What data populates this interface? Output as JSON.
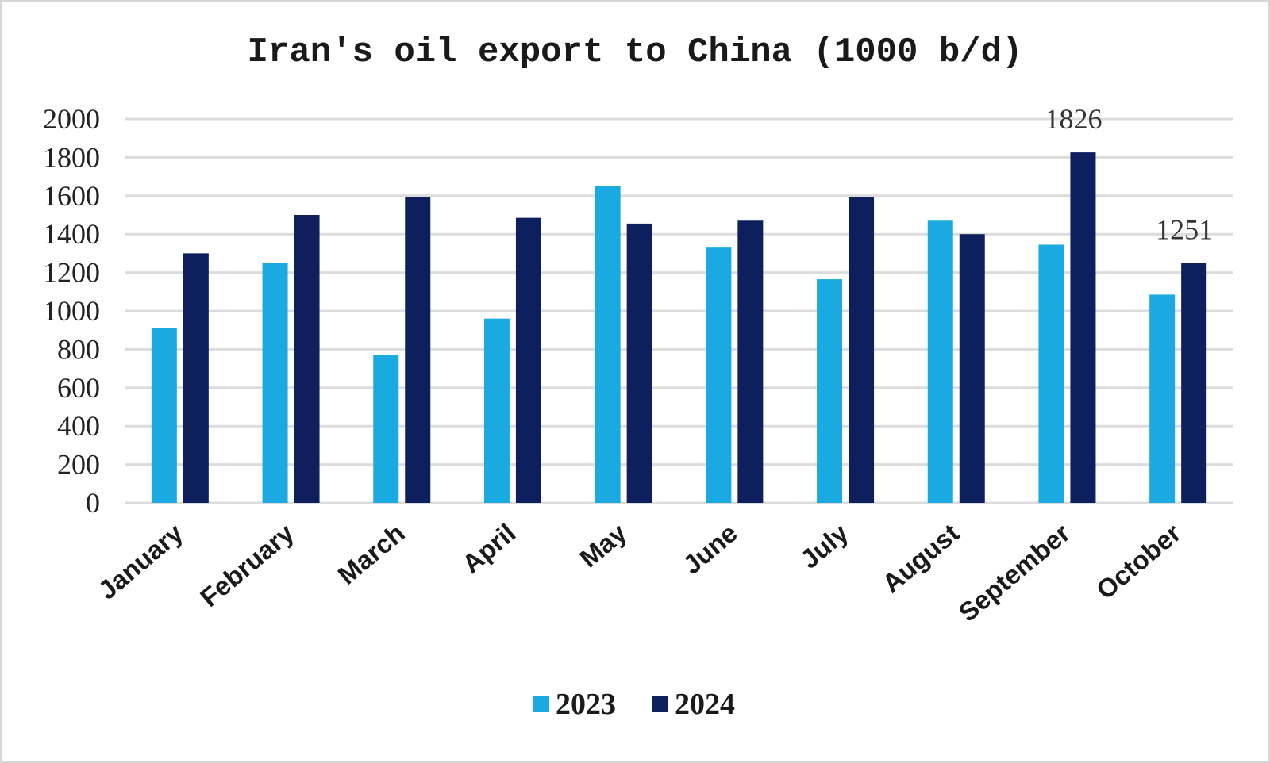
{
  "chart_data": {
    "type": "bar",
    "title": "Iran's oil export to China (1000 b/d)",
    "categories": [
      "January",
      "February",
      "March",
      "April",
      "May",
      "June",
      "July",
      "August",
      "September",
      "October"
    ],
    "series": [
      {
        "name": "2023",
        "color": "#1ba9e1",
        "values": [
          910,
          1250,
          770,
          960,
          1650,
          1330,
          1165,
          1470,
          1345,
          1085
        ]
      },
      {
        "name": "2024",
        "color": "#0d1f5c",
        "values": [
          1300,
          1500,
          1595,
          1485,
          1455,
          1470,
          1595,
          1400,
          1826,
          1251
        ]
      }
    ],
    "data_labels": [
      {
        "series": "2024",
        "category": "September",
        "text": "1826"
      },
      {
        "series": "2024",
        "category": "October",
        "text": "1251"
      }
    ],
    "ylim": [
      0,
      2000
    ],
    "yticks": [
      0,
      200,
      400,
      600,
      800,
      1000,
      1200,
      1400,
      1600,
      1800,
      2000
    ],
    "grid": true,
    "legend": "bottom-center",
    "xlabel": "",
    "ylabel": ""
  }
}
